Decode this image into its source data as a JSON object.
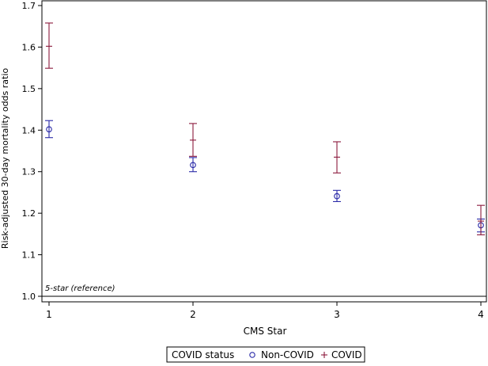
{
  "chart_data": {
    "type": "scatter",
    "ylabel": "Risk-adjusted 30-day mortality odds ratio",
    "xlabel": "CMS Star",
    "x_ticks": [
      1,
      2,
      3,
      4
    ],
    "y_ticks": [
      1.0,
      1.1,
      1.2,
      1.3,
      1.4,
      1.5,
      1.6,
      1.7
    ],
    "xlim": [
      1,
      4
    ],
    "ylim": [
      1.0,
      1.7
    ],
    "reference_line": {
      "y": 1.0,
      "label": "5-star (reference)"
    },
    "legend": {
      "title": "COVID status",
      "position": "bottom-center"
    },
    "series": [
      {
        "name": "Non-COVID",
        "marker": "circle",
        "color": "#2a2aa8",
        "points": [
          {
            "x": 1,
            "y": 1.402,
            "lower": 1.382,
            "upper": 1.423
          },
          {
            "x": 2,
            "y": 1.316,
            "lower": 1.3,
            "upper": 1.334
          },
          {
            "x": 3,
            "y": 1.241,
            "lower": 1.228,
            "upper": 1.255
          },
          {
            "x": 4,
            "y": 1.171,
            "lower": 1.155,
            "upper": 1.186
          }
        ]
      },
      {
        "name": "COVID",
        "marker": "plus",
        "color": "#8b1a3d",
        "points": [
          {
            "x": 1,
            "y": 1.602,
            "lower": 1.549,
            "upper": 1.658
          },
          {
            "x": 2,
            "y": 1.376,
            "lower": 1.337,
            "upper": 1.416
          },
          {
            "x": 3,
            "y": 1.335,
            "lower": 1.297,
            "upper": 1.372
          },
          {
            "x": 4,
            "y": 1.181,
            "lower": 1.148,
            "upper": 1.219
          }
        ]
      }
    ]
  }
}
